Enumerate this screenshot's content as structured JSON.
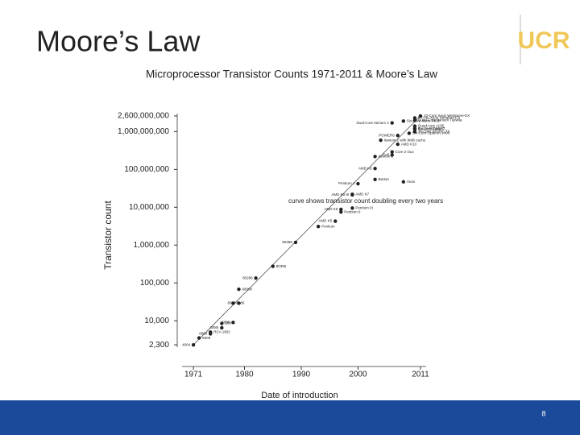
{
  "slide": {
    "title": "Moore’s Law",
    "logo": "UCR",
    "page_number": 8
  },
  "chart_data": {
    "type": "scatter",
    "title": "Microprocessor Transistor Counts 1971-2011 & Moore’s Law",
    "x_label": "Date of introduction",
    "y_label": "Transistor count",
    "annotation": "curve shows transistor count doubling every two years",
    "yscale": "log",
    "grid": false,
    "color": "#222222",
    "trend_color": "#555555",
    "xlim": [
      1969,
      2012
    ],
    "xticks": [
      1971,
      1980,
      1990,
      2000,
      2011
    ],
    "ylim": [
      2000,
      3000000000
    ],
    "yticks": [
      {
        "value": 2300,
        "label": "2,300"
      },
      {
        "value": 10000,
        "label": "10,000"
      },
      {
        "value": 100000,
        "label": "100,000"
      },
      {
        "value": 1000000,
        "label": "1,000,000"
      },
      {
        "value": 10000000,
        "label": "10,000,000"
      },
      {
        "value": 100000000,
        "label": "100,000,000"
      },
      {
        "value": 1000000000,
        "label": "1,000,000,000"
      },
      {
        "value": 2600000000,
        "label": "2,600,000,000"
      }
    ],
    "trend": {
      "x": [
        1971,
        2011
      ],
      "values": [
        2300,
        2600000000
      ]
    },
    "point_labels": [
      "4004",
      "8008",
      "8080",
      "RCA 1802",
      "8085",
      "Z80",
      "6809",
      "8086",
      "8088",
      "68000",
      "80286",
      "80386",
      "80486",
      "Pentium",
      "AMD K5",
      "Pentium II",
      "AMD K6",
      "Pentium III",
      "AMD K6-III",
      "AMD K7",
      "Pentium 4",
      "Barton",
      "AMD K8",
      "Itanium 2",
      "Cell",
      "Core 2 Duo",
      "Atom",
      "AMD K10",
      "POWER6",
      "Itanium 2 with 9MB cache",
      "Dual-Core Itanium 2",
      "Six-Core Xeon 7400",
      "Six-Core Core i7",
      "10-Core Xeon Westmere-EX",
      "Six-Core Opteron 2400",
      "8-core POWER7",
      "Quad-core z196",
      "Quad-Core Itanium Tukwila",
      "8-Core Xeon Nehalem-EX",
      "16-Core SPARC T3"
    ],
    "x": [
      1971,
      1972,
      1974,
      1974,
      1976,
      1976,
      1978,
      1978,
      1979,
      1979,
      1982,
      1985,
      1989,
      1993,
      1996,
      1997,
      1997,
      1999,
      1999,
      1999,
      2000,
      2003,
      2003,
      2003,
      2006,
      2006,
      2008,
      2007,
      2007,
      2004,
      2006,
      2008,
      2010,
      2011,
      2009,
      2010,
      2010,
      2010,
      2010,
      2010
    ],
    "values": [
      2300,
      3500,
      4500,
      5000,
      6500,
      8500,
      9000,
      29000,
      29000,
      68000,
      134000,
      275000,
      1180000,
      3100000,
      4300000,
      7500000,
      8800000,
      9500000,
      21300000,
      22000000,
      42000000,
      54300000,
      105900000,
      220000000,
      241000000,
      291000000,
      47000000,
      463000000,
      789000000,
      592000000,
      1700000000,
      1900000000,
      1170000000,
      2600000000,
      904000000,
      1200000000,
      1400000000,
      2000000000,
      2300000000,
      1000000000
    ]
  }
}
